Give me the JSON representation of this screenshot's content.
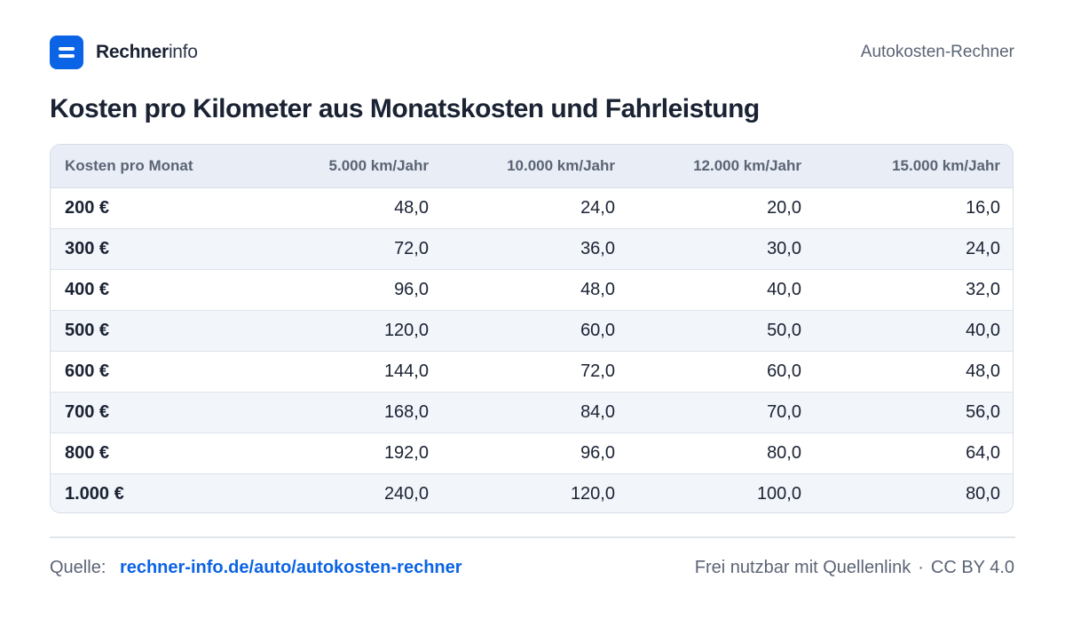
{
  "brand": {
    "name_bold": "Rechner",
    "name_light": "info"
  },
  "header": {
    "section": "Autokosten-Rechner"
  },
  "title": "Kosten pro Kilometer aus Monatskosten und Fahrleistung",
  "table": {
    "headers": [
      "Kosten pro Monat",
      "5.000 km/Jahr",
      "10.000 km/Jahr",
      "12.000 km/Jahr",
      "15.000 km/Jahr"
    ],
    "rows": [
      [
        "200 €",
        "48,0",
        "24,0",
        "20,0",
        "16,0"
      ],
      [
        "300 €",
        "72,0",
        "36,0",
        "30,0",
        "24,0"
      ],
      [
        "400 €",
        "96,0",
        "48,0",
        "40,0",
        "32,0"
      ],
      [
        "500 €",
        "120,0",
        "60,0",
        "50,0",
        "40,0"
      ],
      [
        "600 €",
        "144,0",
        "72,0",
        "60,0",
        "48,0"
      ],
      [
        "700 €",
        "168,0",
        "84,0",
        "70,0",
        "56,0"
      ],
      [
        "800 €",
        "192,0",
        "96,0",
        "80,0",
        "64,0"
      ],
      [
        "1.000 €",
        "240,0",
        "120,0",
        "100,0",
        "80,0"
      ]
    ]
  },
  "footer": {
    "source_label": "Quelle:",
    "source_link": "rechner-info.de/auto/autokosten-rechner",
    "license_text": "Frei nutzbar mit Quellenlink",
    "separator": "·",
    "license": "CC BY 4.0"
  },
  "colors": {
    "accent": "#0b63e5",
    "text": "#1a2233",
    "muted": "#5b6475",
    "header_bg": "#e9eef6"
  },
  "icons": {
    "logo": "logo-icon"
  }
}
